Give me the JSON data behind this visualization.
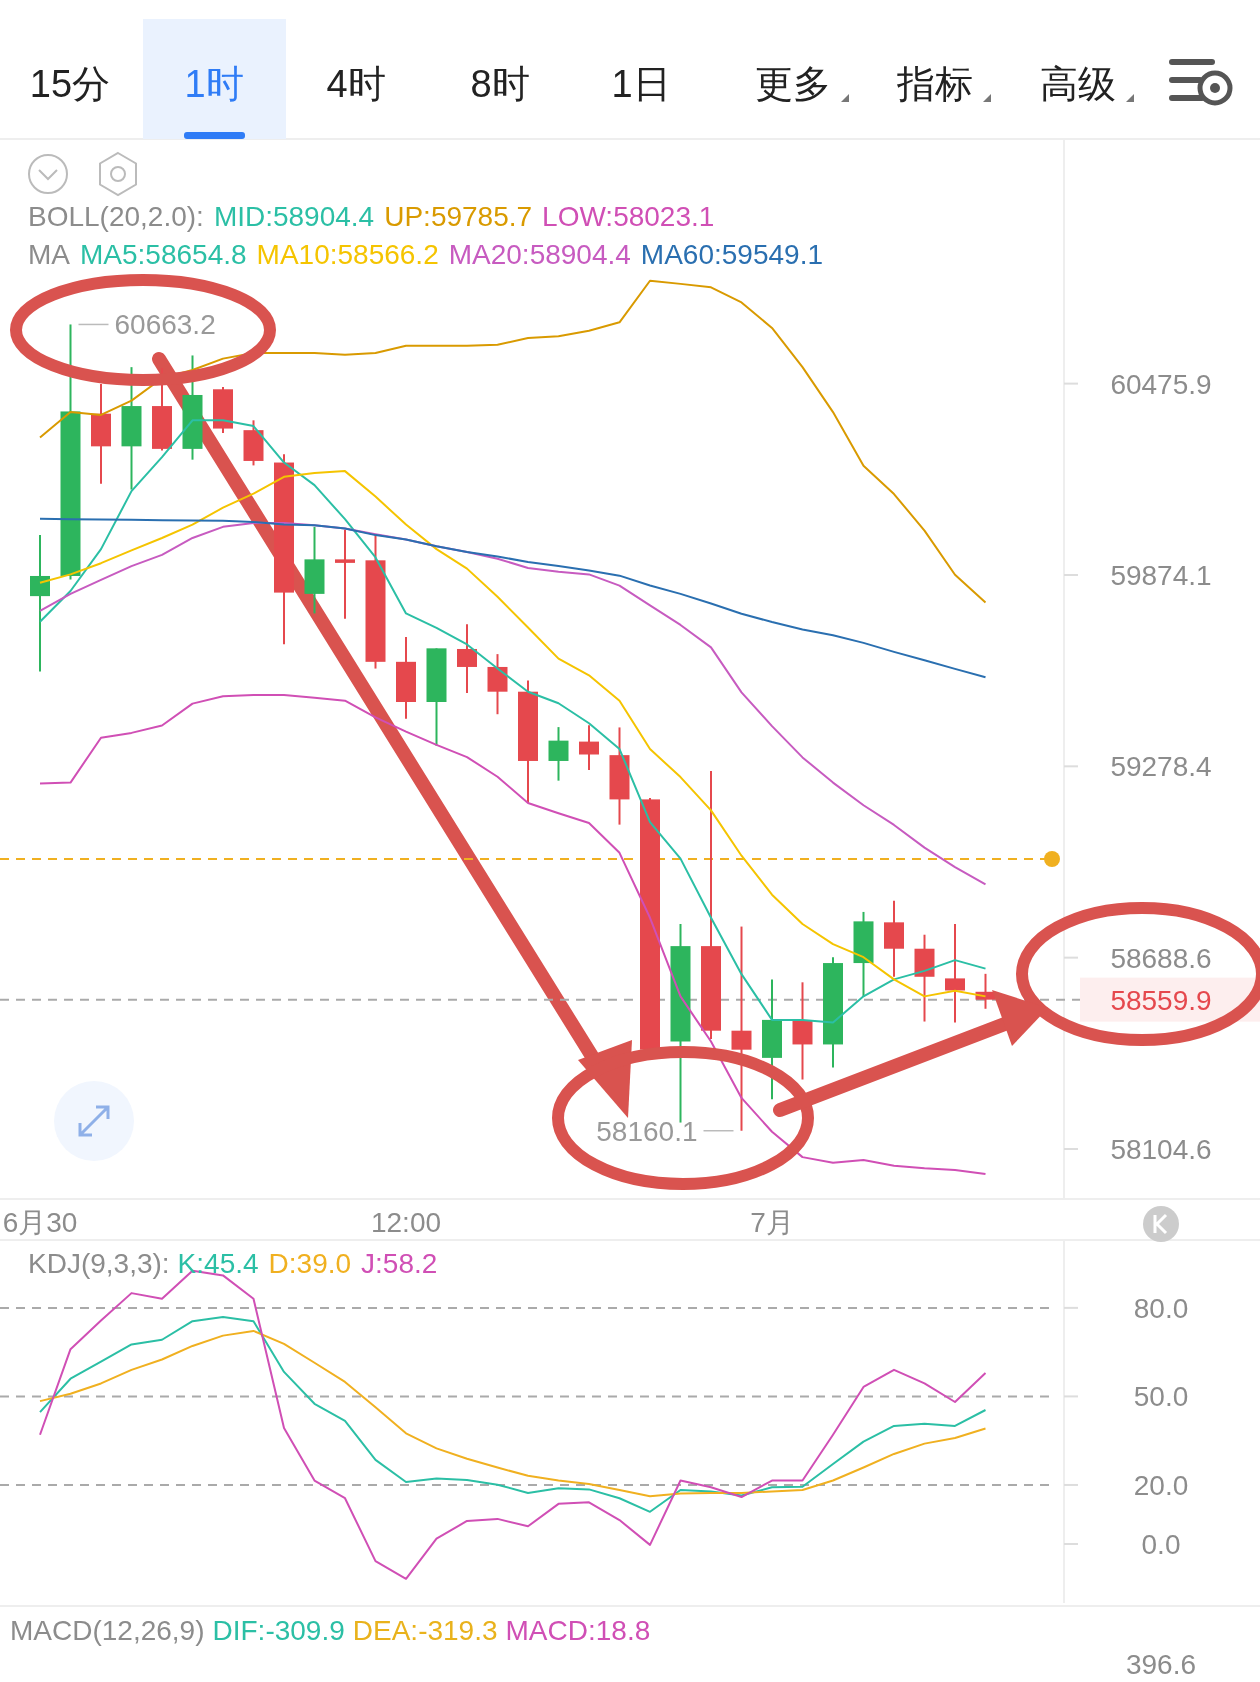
{
  "chart_data": [
    {
      "type": "other",
      "annotations": [
        "15分",
        "1时",
        "4时",
        "8时",
        "1日",
        "更多",
        "指标",
        "高级"
      ]
    },
    {
      "type": "candlestick",
      "log": "y",
      "legend": "top",
      "categories": [
        "6月30",
        null,
        null,
        null,
        null,
        null,
        null,
        null,
        null,
        null,
        null,
        null,
        "12:00",
        null,
        null,
        null,
        null,
        null,
        null,
        null,
        null,
        null,
        null,
        null,
        "7月",
        null,
        null,
        null,
        null,
        null,
        null,
        null
      ],
      "ylim": [
        57953,
        61254
      ],
      "yticks": [
        58104.6,
        58688.6,
        59278.4,
        59874.1,
        60475.9
      ],
      "ohlc": [
        [
          59808,
          59999,
          59573,
          59871
        ],
        [
          59871,
          60663.2,
          59860,
          60388
        ],
        [
          60381,
          60475,
          60160,
          60278
        ],
        [
          60278,
          60528,
          60142,
          60405
        ],
        [
          60405,
          60525,
          60265,
          60270
        ],
        [
          60270,
          60565,
          60236,
          60440
        ],
        [
          60458,
          60465,
          60320,
          60334
        ],
        [
          60329,
          60360,
          60218,
          60232
        ],
        [
          60227,
          60253,
          59658,
          59819
        ],
        [
          59815,
          60025,
          59754,
          59923
        ],
        [
          59923,
          60016,
          59737,
          59912
        ],
        [
          59920,
          59999,
          59582,
          59603
        ],
        [
          59603,
          59680,
          59426,
          59478
        ],
        [
          59478,
          59645,
          59342,
          59645
        ],
        [
          59643,
          59720,
          59506,
          59587
        ],
        [
          59587,
          59627,
          59440,
          59510
        ],
        [
          59510,
          59545,
          59165,
          59295
        ],
        [
          59295,
          59400,
          59234,
          59358
        ],
        [
          59355,
          59406,
          59267,
          59315
        ],
        [
          59313,
          59399,
          59098,
          59176
        ],
        [
          59176,
          59180,
          58400,
          58407
        ],
        [
          58432,
          58792,
          58185,
          58724
        ],
        [
          58724,
          59264,
          58440,
          58465
        ],
        [
          58465,
          58784,
          58160.1,
          58407
        ],
        [
          58382,
          58622,
          58256,
          58498
        ],
        [
          58495,
          58613,
          58316,
          58423
        ],
        [
          58423,
          58690,
          58353,
          58672
        ],
        [
          58672,
          58829,
          58570,
          58800
        ],
        [
          58797,
          58863,
          58630,
          58716
        ],
        [
          58716,
          58759,
          58493,
          58630
        ],
        [
          58625,
          58792,
          58490,
          58588
        ],
        [
          58584,
          58639,
          58532,
          58559.9
        ]
      ],
      "series": [
        {
          "type": "line",
          "name": "UP:59785.7",
          "color": "#d99a00",
          "values": [
            60306,
            60386,
            60377,
            60422,
            60493,
            60519,
            60555,
            60573,
            60573,
            60573,
            60567,
            60573,
            60596,
            60596,
            60596,
            60599,
            60620,
            60626,
            60643,
            60670,
            60802,
            60792,
            60781,
            60733,
            60652,
            60528,
            60386,
            60217,
            60128,
            60013,
            59875,
            59788
          ]
        },
        {
          "type": "line",
          "name": "LOW:58023.1",
          "color": "#d04fb5",
          "values": [
            59225,
            59228,
            59367,
            59382,
            59405,
            59473,
            59496,
            59500,
            59500,
            59491,
            59482,
            59430,
            59386,
            59345,
            59307,
            59246,
            59165,
            59133,
            59103,
            59011,
            58811,
            58570,
            58432,
            58260,
            58157,
            58080,
            58063,
            58071,
            58054,
            58046,
            58041,
            58029
          ]
        },
        {
          "type": "line",
          "name": "MA5:58654.8",
          "color": "#2bbfa5",
          "values": [
            59728,
            59824,
            59955,
            60137,
            60244,
            60360,
            60360,
            60342,
            60227,
            60156,
            60049,
            59929,
            59754,
            59709,
            59657,
            59582,
            59510,
            59474,
            59412,
            59332,
            59106,
            58993,
            58811,
            58638,
            58498,
            58498,
            58490,
            58570,
            58622,
            58648,
            58681,
            58655
          ]
        },
        {
          "type": "line",
          "name": "MA10:58566.2",
          "color": "#f5c400",
          "values": [
            59850,
            59876,
            59911,
            59951,
            59990,
            60032,
            60085,
            60129,
            60182,
            60194,
            60200,
            60120,
            60032,
            59955,
            59894,
            59806,
            59710,
            59613,
            59561,
            59482,
            59332,
            59245,
            59142,
            59002,
            58882,
            58792,
            58730,
            58690,
            58622,
            58570,
            58587,
            58570
          ]
        },
        {
          "type": "line",
          "name": "MA20:58904.4",
          "color": "#c75bc0",
          "values": [
            59762,
            59815,
            59859,
            59902,
            59937,
            59990,
            60025,
            60037,
            60037,
            60030,
            60020,
            60002,
            59985,
            59964,
            59946,
            59925,
            59896,
            59884,
            59876,
            59841,
            59779,
            59718,
            59648,
            59508,
            59403,
            59306,
            59228,
            59158,
            59097,
            59027,
            58967,
            58914
          ]
        },
        {
          "type": "line",
          "name": "MA60:59549.1",
          "color": "#2a6fb0",
          "values": [
            60050,
            60049,
            60048,
            60047,
            60046,
            60045,
            60044,
            60040,
            60032,
            60030,
            60020,
            59999,
            59985,
            59964,
            59946,
            59932,
            59915,
            59902,
            59888,
            59872,
            59841,
            59815,
            59785,
            59753,
            59727,
            59704,
            59686,
            59662,
            59634,
            59608,
            59581,
            59555
          ]
        }
      ],
      "ref_lines": [
        {
          "axis": "y",
          "value": 58992,
          "color": "#f0b020",
          "line_style": "dashed"
        },
        {
          "axis": "y",
          "value": 58559.9,
          "label": "58559.9",
          "color": "#aaaaaa",
          "line_style": "dashed"
        }
      ],
      "annotations": [
        "BOLL(20,2.0):",
        "MID:58904.4",
        "MA",
        "60663.2",
        "58160.1"
      ]
    },
    {
      "type": "line",
      "title": "KDJ(9,3,3):",
      "legend": "top left",
      "tick_labels": "y",
      "categories": [
        null,
        null,
        null,
        null,
        null,
        null,
        null,
        null,
        null,
        null,
        null,
        null,
        null,
        null,
        null,
        null,
        null,
        null,
        null,
        null,
        null,
        null,
        null,
        null,
        null,
        null,
        null,
        null,
        null,
        null,
        null,
        null
      ],
      "ylim": [
        -20,
        103
      ],
      "yticks": [
        {
          "value": 0,
          "label": "0.0"
        },
        {
          "value": 20,
          "label": "20.0"
        },
        {
          "value": 50,
          "label": "50.0"
        },
        {
          "value": 80,
          "label": "80.0"
        }
      ],
      "ref_lines": [
        {
          "axis": "y",
          "value": 20,
          "color": "#aaaaaa",
          "line_style": "dashed"
        },
        {
          "axis": "y",
          "value": 50,
          "color": "#aaaaaa",
          "line_style": "dashed"
        },
        {
          "axis": "y",
          "value": 80,
          "color": "#aaaaaa",
          "line_style": "dashed"
        }
      ],
      "series": [
        {
          "name": "K:45.4",
          "color": "#2bbfa5",
          "values": [
            44.7,
            56.0,
            61.8,
            67.6,
            69.2,
            75.5,
            76.9,
            75.5,
            58.3,
            47.5,
            41.7,
            28.5,
            21.0,
            22.2,
            21.7,
            20.1,
            17.3,
            18.9,
            18.5,
            15.5,
            10.9,
            18.3,
            17.8,
            16.4,
            19.2,
            19.4,
            27.1,
            34.7,
            40.0,
            40.7,
            40.0,
            45.4
          ]
        },
        {
          "name": "D:39.0",
          "color": "#f0b020",
          "values": [
            48.4,
            50.9,
            54.4,
            59.0,
            62.5,
            67.1,
            70.6,
            72.2,
            67.8,
            61.4,
            54.9,
            46.3,
            37.5,
            32.4,
            28.9,
            25.9,
            23.1,
            21.5,
            20.3,
            18.3,
            16.2,
            17.1,
            17.3,
            17.3,
            17.8,
            18.3,
            21.5,
            25.9,
            30.5,
            34.0,
            35.9,
            39.1
          ]
        },
        {
          "name": "J:58.2",
          "color": "#d04fb5",
          "values": [
            37.0,
            66.0,
            75.7,
            85.0,
            83.1,
            92.6,
            91.0,
            83.1,
            39.3,
            21.5,
            15.5,
            -5.8,
            -11.8,
            1.8,
            7.8,
            8.5,
            6.0,
            13.6,
            14.1,
            8.1,
            -0.3,
            21.5,
            19.2,
            15.9,
            21.5,
            21.5,
            37.0,
            53.2,
            59.0,
            54.4,
            48.1,
            57.9
          ]
        }
      ]
    },
    {
      "type": "other",
      "title": "MACD(12,26,9)",
      "annotations": [
        "DIF:-309.9",
        "DEA:-319.3",
        "MACD:18.8",
        "396.6"
      ]
    }
  ]
}
